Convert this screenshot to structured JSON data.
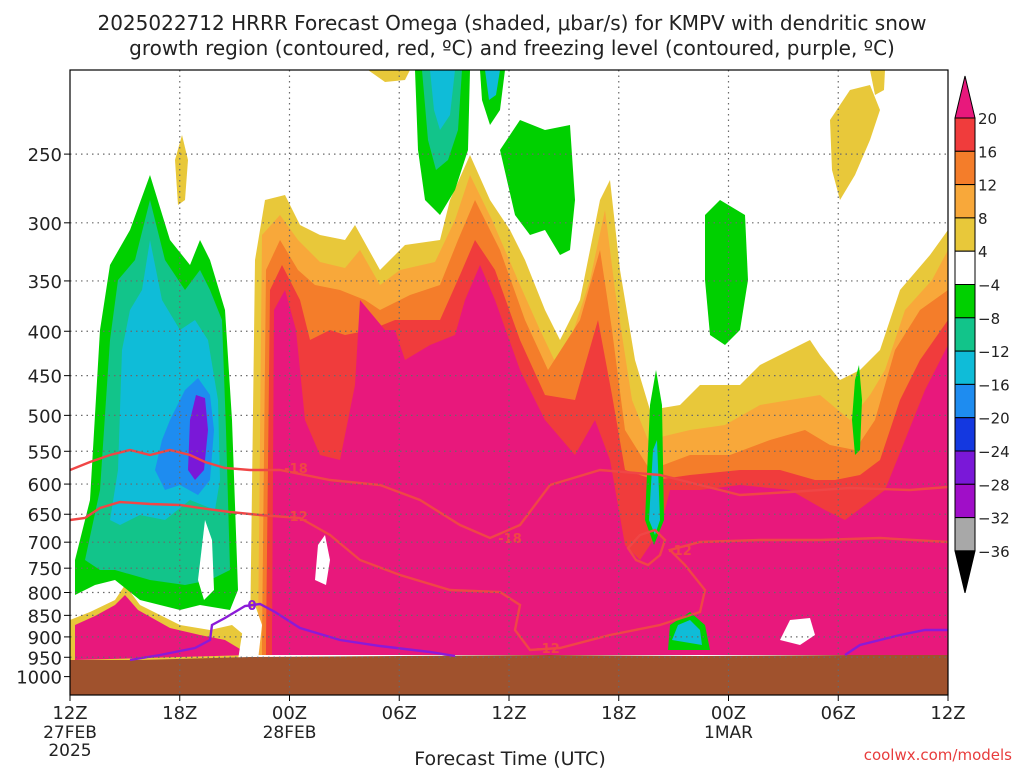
{
  "title_line1": "2025022712 HRRR Forecast Omega (shaded, μbar/s) for KMPV with dendritic snow",
  "title_line2": "growth region (contoured, red, ºC) and freezing level (contoured, purple, ºC)",
  "credit": "coolwx.com/models",
  "chart_data": {
    "type": "heatmap",
    "xlabel": "Forecast Time (UTC)",
    "x_ticks": [
      {
        "label": "12Z",
        "sub": "27FEB",
        "sub2": "2025",
        "hour": 0
      },
      {
        "label": "18Z",
        "sub": "",
        "sub2": "",
        "hour": 6
      },
      {
        "label": "00Z",
        "sub": "28FEB",
        "sub2": "",
        "hour": 12
      },
      {
        "label": "06Z",
        "sub": "",
        "sub2": "",
        "hour": 18
      },
      {
        "label": "12Z",
        "sub": "",
        "sub2": "",
        "hour": 24
      },
      {
        "label": "18Z",
        "sub": "",
        "sub2": "",
        "hour": 30
      },
      {
        "label": "00Z",
        "sub": "1MAR",
        "sub2": "",
        "hour": 36
      },
      {
        "label": "06Z",
        "sub": "",
        "sub2": "",
        "hour": 42
      },
      {
        "label": "12Z",
        "sub": "",
        "sub2": "",
        "hour": 48
      }
    ],
    "xlim": [
      0,
      48
    ],
    "ylabel": "",
    "y_scale": "log pressure (hPa), inverted",
    "ylim": [
      1050,
      200
    ],
    "y_ticks": [
      250,
      300,
      350,
      400,
      450,
      500,
      550,
      600,
      650,
      700,
      750,
      800,
      850,
      900,
      950,
      1000
    ],
    "grid": true,
    "colorbar": {
      "units": "μbar/s",
      "labels": [
        "20",
        "16",
        "12",
        "8",
        "4",
        "−4",
        "−8",
        "−12",
        "−16",
        "−20",
        "−24",
        "−28",
        "−32",
        "−36"
      ],
      "bins": [
        {
          "range": ">20",
          "color": "#e8187c"
        },
        {
          "range": "16 to 20",
          "color": "#f03c3c"
        },
        {
          "range": "12 to 16",
          "color": "#f47d2a"
        },
        {
          "range": "8 to 12",
          "color": "#f8a83a"
        },
        {
          "range": "4 to 8",
          "color": "#e8c83a"
        },
        {
          "range": "-4 to 4",
          "color": "#ffffff"
        },
        {
          "range": "-8 to -4",
          "color": "#00d000"
        },
        {
          "range": "-12 to -8",
          "color": "#12c48a"
        },
        {
          "range": "-16 to -12",
          "color": "#0fbcd8"
        },
        {
          "range": "-20 to -16",
          "color": "#1e8cf0"
        },
        {
          "range": "-24 to -20",
          "color": "#1438e0"
        },
        {
          "range": "-28 to -24",
          "color": "#7a18d8"
        },
        {
          "range": "-32 to -28",
          "color": "#a00ec8"
        },
        {
          "range": "-36 to -32",
          "color": "#a8a8a8"
        },
        {
          "range": "<-36",
          "color": "#000000"
        }
      ]
    },
    "contours": [
      {
        "label": "-18",
        "color": "#f04646"
      },
      {
        "label": "-12",
        "color": "#f04646"
      },
      {
        "label": "0",
        "color": "#8b1ad8"
      }
    ],
    "ground_color": "#a0522d"
  }
}
